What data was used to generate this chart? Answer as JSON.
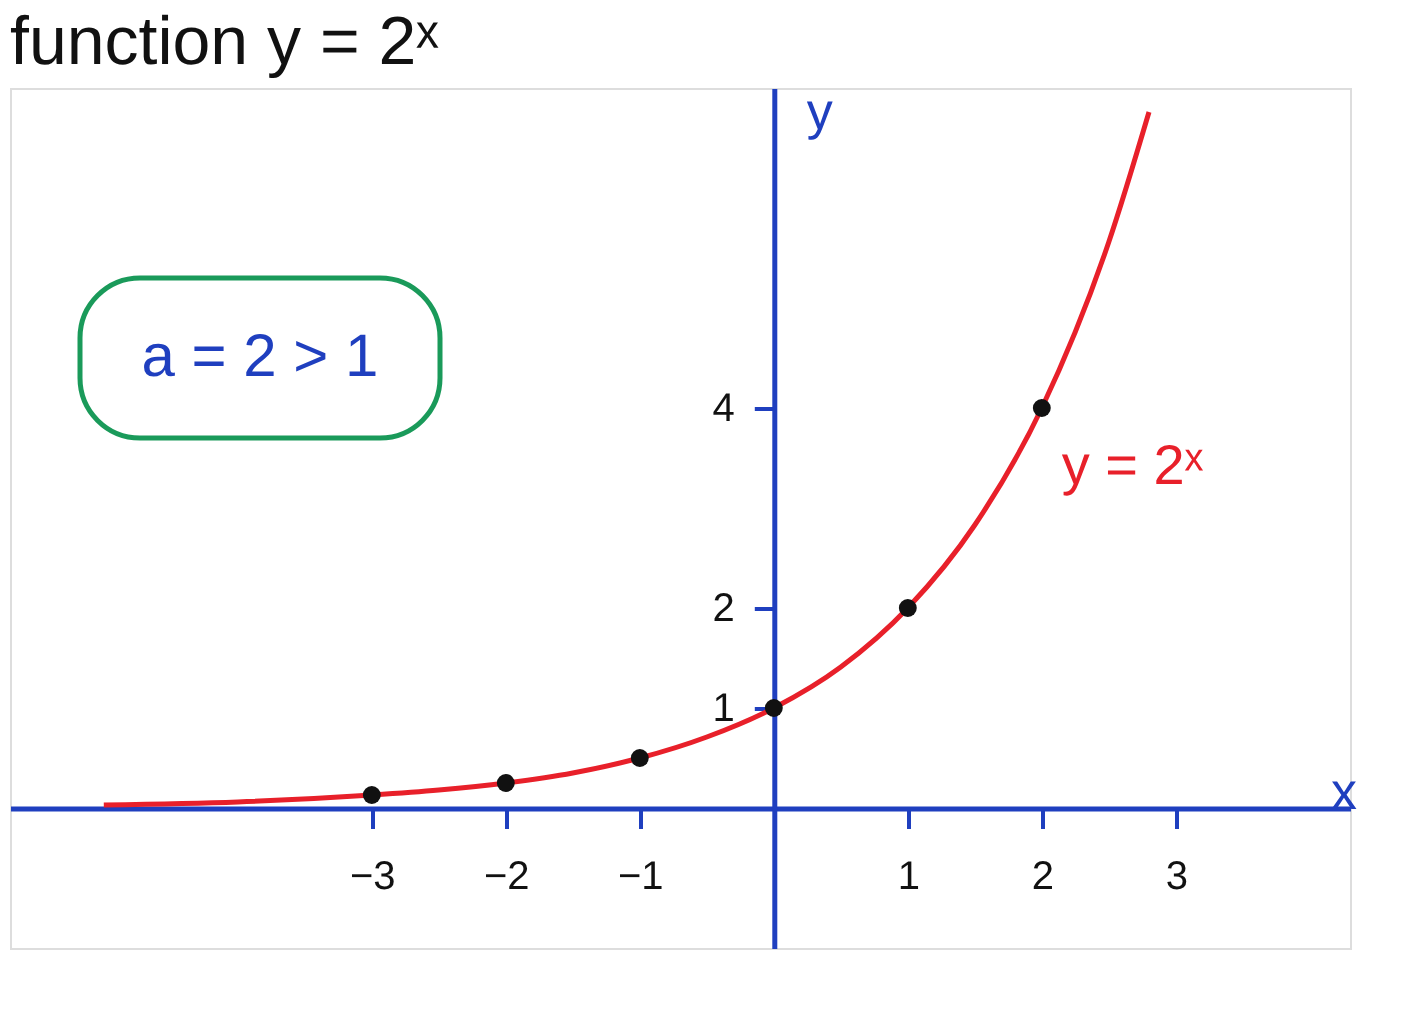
{
  "chart_data": {
    "type": "line",
    "title": "function y = 2ˣ",
    "xlabel": "x",
    "ylabel": "y",
    "xlim": [
      -5.7,
      4.3
    ],
    "ylim": [
      -1.4,
      7.2
    ],
    "xticks": [
      -3,
      -2,
      -1,
      1,
      2,
      3
    ],
    "yticks": [
      1,
      2,
      4
    ],
    "annotations": [
      "a = 2 > 1"
    ],
    "series": [
      {
        "name": "y = 2ˣ",
        "color": "#e8202a",
        "marker": "none",
        "x": [
          -5,
          -4,
          -3,
          -2.5,
          -2,
          -1.5,
          -1,
          -0.5,
          0,
          0.5,
          1,
          1.5,
          2,
          2.5,
          2.8
        ],
        "values": [
          0.03,
          0.06,
          0.13,
          0.18,
          0.25,
          0.35,
          0.5,
          0.71,
          1,
          1.41,
          2,
          2.83,
          4,
          5.66,
          6.96
        ]
      },
      {
        "type": "scatter",
        "color": "#111111",
        "marker": "circle",
        "x": [
          -3,
          -2,
          -1,
          0,
          1,
          2
        ],
        "values": [
          0.13,
          0.25,
          0.5,
          1,
          2,
          4
        ]
      }
    ]
  }
}
